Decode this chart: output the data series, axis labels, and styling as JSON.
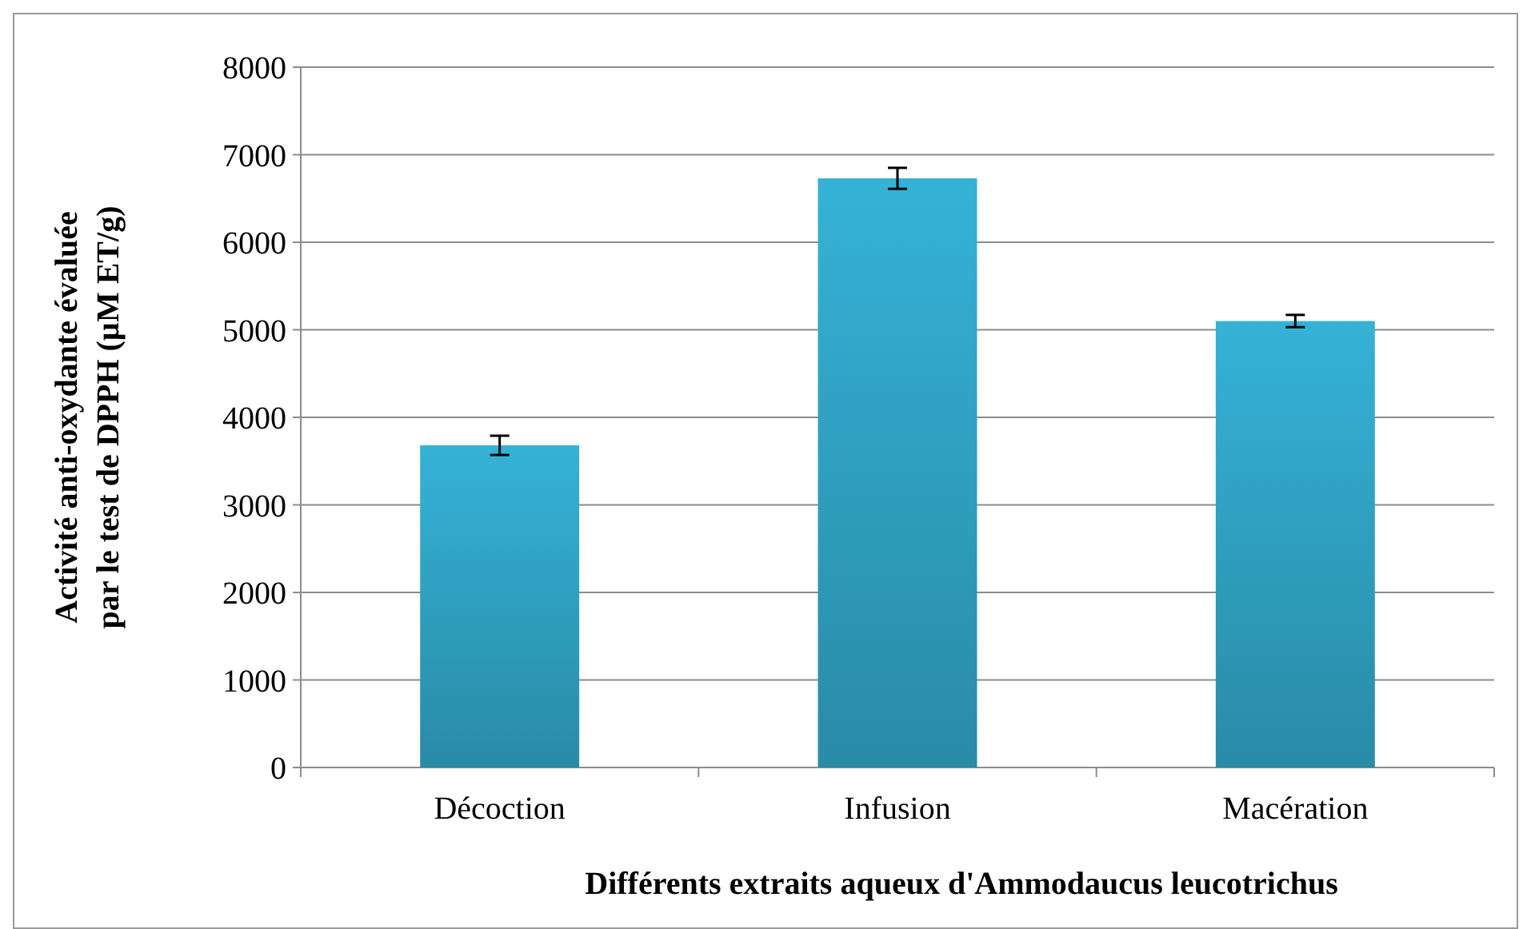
{
  "chart_data": {
    "type": "bar",
    "xlabel": "Différents extraits aqueux d'Ammodaucus leucotrichus",
    "ylabel": "Activité anti-oxydante évaluée\npar le test de DPPH (µM ET/g)",
    "categories": [
      "Décoction",
      "Infusion",
      "Macération"
    ],
    "values": [
      3680,
      6730,
      5100
    ],
    "errors": [
      110,
      120,
      70
    ],
    "color": "#35b2d6",
    "ylim": [
      0,
      8000
    ],
    "yticks": [
      0,
      1000,
      2000,
      3000,
      4000,
      5000,
      6000,
      7000,
      8000
    ],
    "grid": "y"
  }
}
